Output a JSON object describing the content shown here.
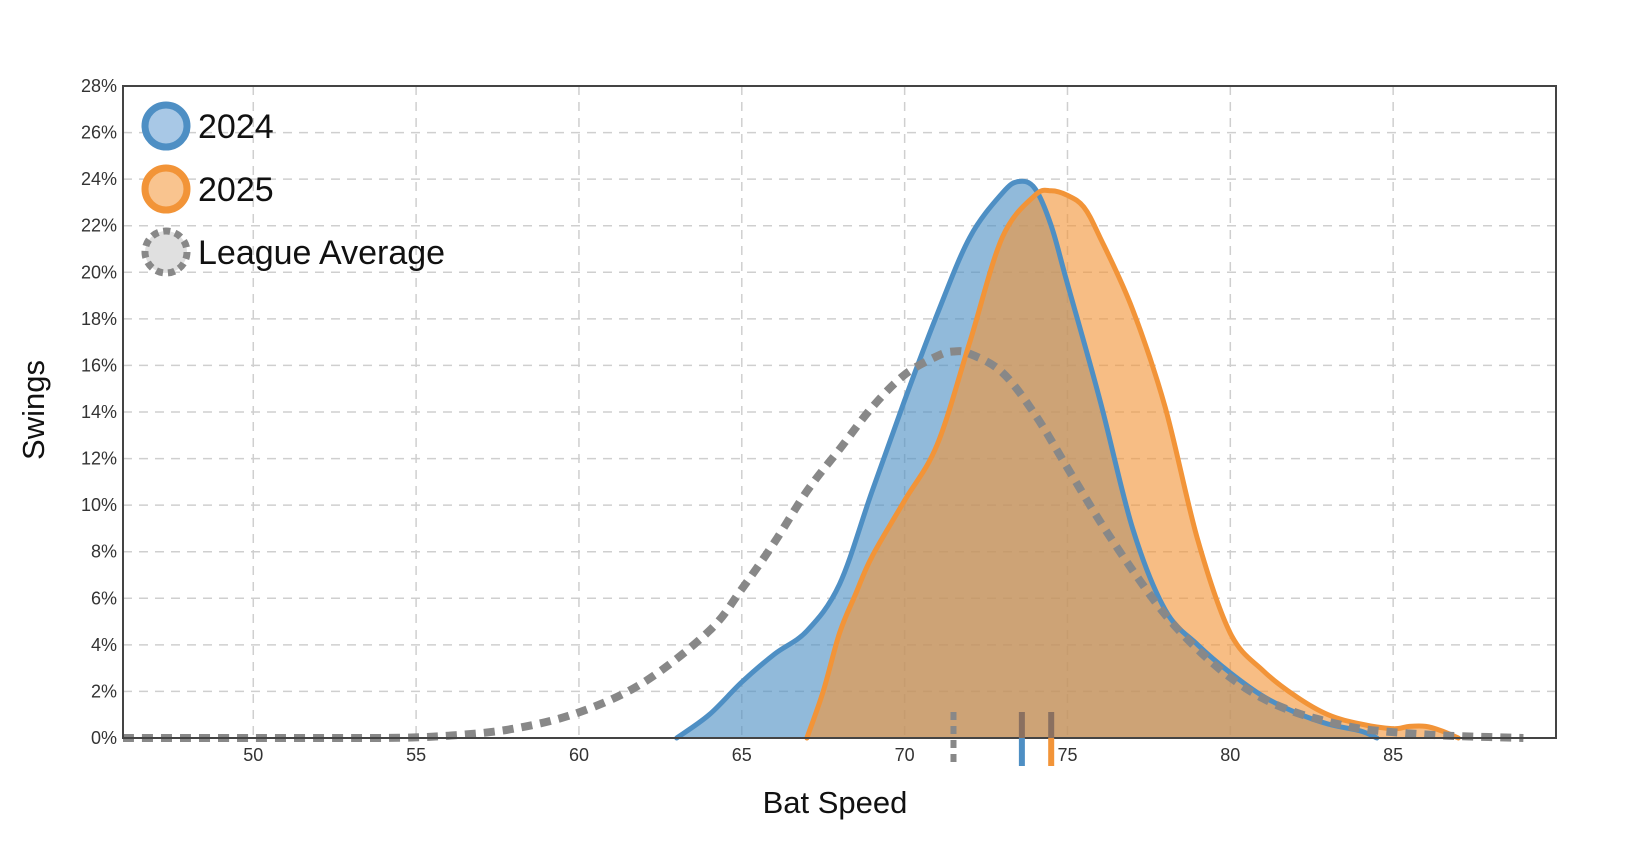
{
  "chart_data": {
    "type": "area",
    "xlabel": "Bat Speed",
    "ylabel": "Swings",
    "xlim": [
      46,
      90
    ],
    "ylim": [
      0,
      28
    ],
    "x_ticks": [
      50,
      55,
      60,
      65,
      70,
      75,
      80,
      85
    ],
    "y_ticks": [
      0,
      2,
      4,
      6,
      8,
      10,
      12,
      14,
      16,
      18,
      20,
      22,
      24,
      26,
      28
    ],
    "y_tick_format": "percent",
    "grid": true,
    "legend_position": "top-left",
    "series": [
      {
        "name": "2024",
        "color": "#4e8fc4",
        "fill": "#a8c8e6",
        "style": "solid",
        "mean": 73.6,
        "x": [
          63,
          64,
          65,
          66,
          67,
          68,
          69,
          70,
          71,
          72,
          73,
          73.5,
          74,
          74.5,
          75,
          76,
          77,
          78,
          79,
          80,
          81,
          82,
          83,
          84,
          84.5
        ],
        "y": [
          0,
          1.0,
          2.4,
          3.6,
          4.6,
          6.6,
          10.6,
          14.5,
          18.2,
          21.5,
          23.4,
          23.9,
          23.6,
          22.0,
          19.5,
          14.5,
          9.0,
          5.5,
          4.0,
          2.8,
          1.8,
          1.1,
          0.6,
          0.3,
          0
        ]
      },
      {
        "name": "2025",
        "color": "#f29438",
        "fill": "#f9c48f",
        "style": "solid",
        "mean": 74.5,
        "x": [
          67,
          67.5,
          68,
          68.5,
          69,
          70,
          71,
          72,
          73,
          74,
          74.5,
          75,
          75.5,
          76,
          77,
          78,
          79,
          80,
          81,
          82,
          83,
          84,
          85,
          85.5,
          86,
          86.5,
          87
        ],
        "y": [
          0,
          2.0,
          4.5,
          6.2,
          7.8,
          10.2,
          12.6,
          17.0,
          21.5,
          23.3,
          23.5,
          23.3,
          22.8,
          21.5,
          18.4,
          14.2,
          8.5,
          4.5,
          2.9,
          1.8,
          1.0,
          0.6,
          0.4,
          0.5,
          0.5,
          0.3,
          0
        ]
      },
      {
        "name": "League Average",
        "color": "#888888",
        "fill": "#e0e0e0",
        "style": "dotted",
        "mean": 71.5,
        "x": [
          46,
          50,
          54,
          56,
          58,
          60,
          62,
          64,
          65,
          66,
          67,
          68,
          69,
          70,
          71,
          71.5,
          72,
          73,
          74,
          75,
          76,
          77,
          78,
          79,
          80,
          81,
          82,
          83,
          84,
          85,
          86,
          87,
          89
        ],
        "y": [
          0,
          0,
          0,
          0.1,
          0.4,
          1.1,
          2.4,
          4.6,
          6.4,
          8.4,
          10.6,
          12.4,
          14.2,
          15.6,
          16.4,
          16.6,
          16.5,
          15.7,
          13.9,
          11.6,
          9.3,
          7.2,
          5.3,
          3.8,
          2.6,
          1.7,
          1.1,
          0.7,
          0.4,
          0.25,
          0.15,
          0.08,
          0
        ]
      }
    ]
  }
}
